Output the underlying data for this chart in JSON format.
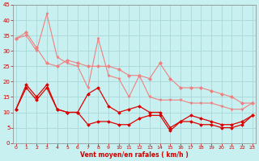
{
  "xlabel": "Vent moyen/en rafales ( km/h )",
  "bg_color": "#c8f0f0",
  "grid_color": "#a8d8d8",
  "x": [
    0,
    1,
    2,
    3,
    4,
    5,
    6,
    7,
    8,
    9,
    10,
    11,
    12,
    13,
    14,
    15,
    16,
    17,
    18,
    19,
    20,
    21,
    22,
    23
  ],
  "series": [
    {
      "y": [
        34,
        36,
        31,
        26,
        25,
        27,
        26,
        25,
        25,
        25,
        24,
        22,
        22,
        21,
        26,
        21,
        18,
        18,
        18,
        17,
        16,
        15,
        13,
        13
      ],
      "color": "#f08080",
      "lw": 0.8,
      "marker": "D",
      "ms": 2.0
    },
    {
      "y": [
        34,
        35,
        30,
        42,
        28,
        26,
        25,
        18,
        34,
        22,
        21,
        15,
        22,
        15,
        14,
        14,
        14,
        13,
        13,
        13,
        12,
        11,
        11,
        13
      ],
      "color": "#f08080",
      "lw": 0.8,
      "marker": "v",
      "ms": 2.0
    },
    {
      "y": [
        11,
        19,
        15,
        19,
        11,
        10,
        10,
        16,
        18,
        12,
        10,
        11,
        12,
        10,
        10,
        5,
        7,
        9,
        8,
        7,
        6,
        6,
        7,
        9
      ],
      "color": "#dd0000",
      "lw": 0.9,
      "marker": "D",
      "ms": 1.8
    },
    {
      "y": [
        11,
        18,
        14,
        18,
        11,
        10,
        10,
        6,
        7,
        7,
        6,
        6,
        8,
        9,
        9,
        4,
        7,
        7,
        6,
        6,
        5,
        5,
        6,
        9
      ],
      "color": "#dd0000",
      "lw": 0.9,
      "marker": "D",
      "ms": 1.8
    }
  ],
  "xlim": [
    -0.3,
    23.3
  ],
  "ylim": [
    0,
    45
  ],
  "yticks": [
    0,
    5,
    10,
    15,
    20,
    25,
    30,
    35,
    40,
    45
  ],
  "xticks": [
    0,
    1,
    2,
    3,
    4,
    5,
    6,
    7,
    8,
    9,
    10,
    11,
    12,
    13,
    14,
    15,
    16,
    17,
    18,
    19,
    20,
    21,
    22,
    23
  ],
  "tick_color": "#cc0000",
  "label_color": "#cc0000",
  "axis_color": "#888888"
}
